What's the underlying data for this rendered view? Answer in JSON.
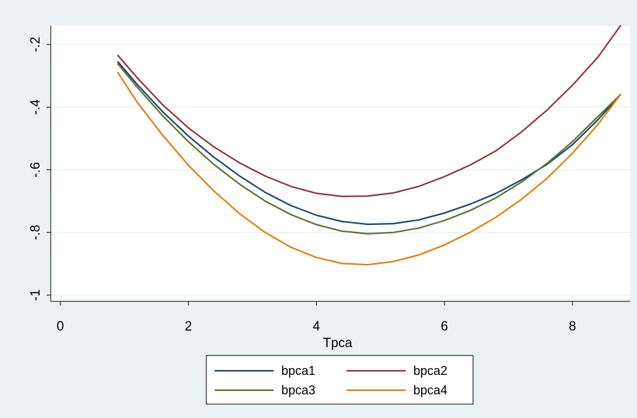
{
  "chart_data": {
    "type": "line",
    "title": "",
    "xlabel": "Tpca",
    "ylabel": "",
    "xlim": [
      -0.15,
      8.9
    ],
    "ylim": [
      -1.02,
      -0.14
    ],
    "xticks": [
      0,
      2,
      4,
      6,
      8
    ],
    "yticks": [
      -0.2,
      -0.4,
      -0.6,
      -0.8,
      -1
    ],
    "xtick_labels": [
      "0",
      "2",
      "4",
      "6",
      "8"
    ],
    "ytick_labels": [
      "-.2",
      "-.4",
      "-.6",
      "-.8",
      "-1"
    ],
    "grid": true,
    "legend": {
      "placement": "bottom",
      "columns": 2
    },
    "colors": {
      "background": "#eaf2f3",
      "plot_background": "#ffffff",
      "grid": "#eaf2f3"
    },
    "series": [
      {
        "name": "bpca1",
        "color": "#1a476f",
        "x": [
          0.9,
          1.2,
          1.6,
          2.0,
          2.4,
          2.8,
          3.2,
          3.6,
          4.0,
          4.4,
          4.8,
          5.2,
          5.6,
          6.0,
          6.4,
          6.8,
          7.2,
          7.6,
          8.0,
          8.4,
          8.75
        ],
        "y": [
          -0.255,
          -0.327,
          -0.415,
          -0.492,
          -0.56,
          -0.62,
          -0.672,
          -0.714,
          -0.745,
          -0.765,
          -0.774,
          -0.772,
          -0.76,
          -0.738,
          -0.71,
          -0.676,
          -0.633,
          -0.583,
          -0.52,
          -0.44,
          -0.36
        ]
      },
      {
        "name": "bpca2",
        "color": "#90353b",
        "x": [
          0.9,
          1.2,
          1.6,
          2.0,
          2.4,
          2.8,
          3.2,
          3.6,
          4.0,
          4.4,
          4.8,
          5.2,
          5.6,
          6.0,
          6.4,
          6.8,
          7.2,
          7.6,
          8.0,
          8.4,
          8.75
        ],
        "y": [
          -0.235,
          -0.306,
          -0.393,
          -0.466,
          -0.527,
          -0.578,
          -0.62,
          -0.653,
          -0.675,
          -0.685,
          -0.684,
          -0.674,
          -0.653,
          -0.622,
          -0.585,
          -0.54,
          -0.48,
          -0.41,
          -0.33,
          -0.24,
          -0.14
        ]
      },
      {
        "name": "bpca3",
        "color": "#55752f",
        "x": [
          0.9,
          1.2,
          1.6,
          2.0,
          2.4,
          2.8,
          3.2,
          3.6,
          4.0,
          4.4,
          4.8,
          5.2,
          5.6,
          6.0,
          6.4,
          6.8,
          7.2,
          7.6,
          8.0,
          8.4,
          8.75
        ],
        "y": [
          -0.262,
          -0.336,
          -0.428,
          -0.51,
          -0.583,
          -0.646,
          -0.7,
          -0.743,
          -0.775,
          -0.796,
          -0.804,
          -0.8,
          -0.786,
          -0.762,
          -0.73,
          -0.69,
          -0.64,
          -0.58,
          -0.51,
          -0.43,
          -0.36
        ]
      },
      {
        "name": "bpca4",
        "color": "#e37e00",
        "x": [
          0.9,
          1.2,
          1.6,
          2.0,
          2.4,
          2.8,
          3.2,
          3.6,
          4.0,
          4.4,
          4.8,
          5.2,
          5.6,
          6.0,
          6.4,
          6.8,
          7.2,
          7.6,
          8.0,
          8.4,
          8.75
        ],
        "y": [
          -0.29,
          -0.384,
          -0.49,
          -0.585,
          -0.668,
          -0.74,
          -0.8,
          -0.847,
          -0.88,
          -0.899,
          -0.903,
          -0.893,
          -0.872,
          -0.84,
          -0.8,
          -0.752,
          -0.695,
          -0.628,
          -0.547,
          -0.455,
          -0.36
        ]
      }
    ]
  }
}
